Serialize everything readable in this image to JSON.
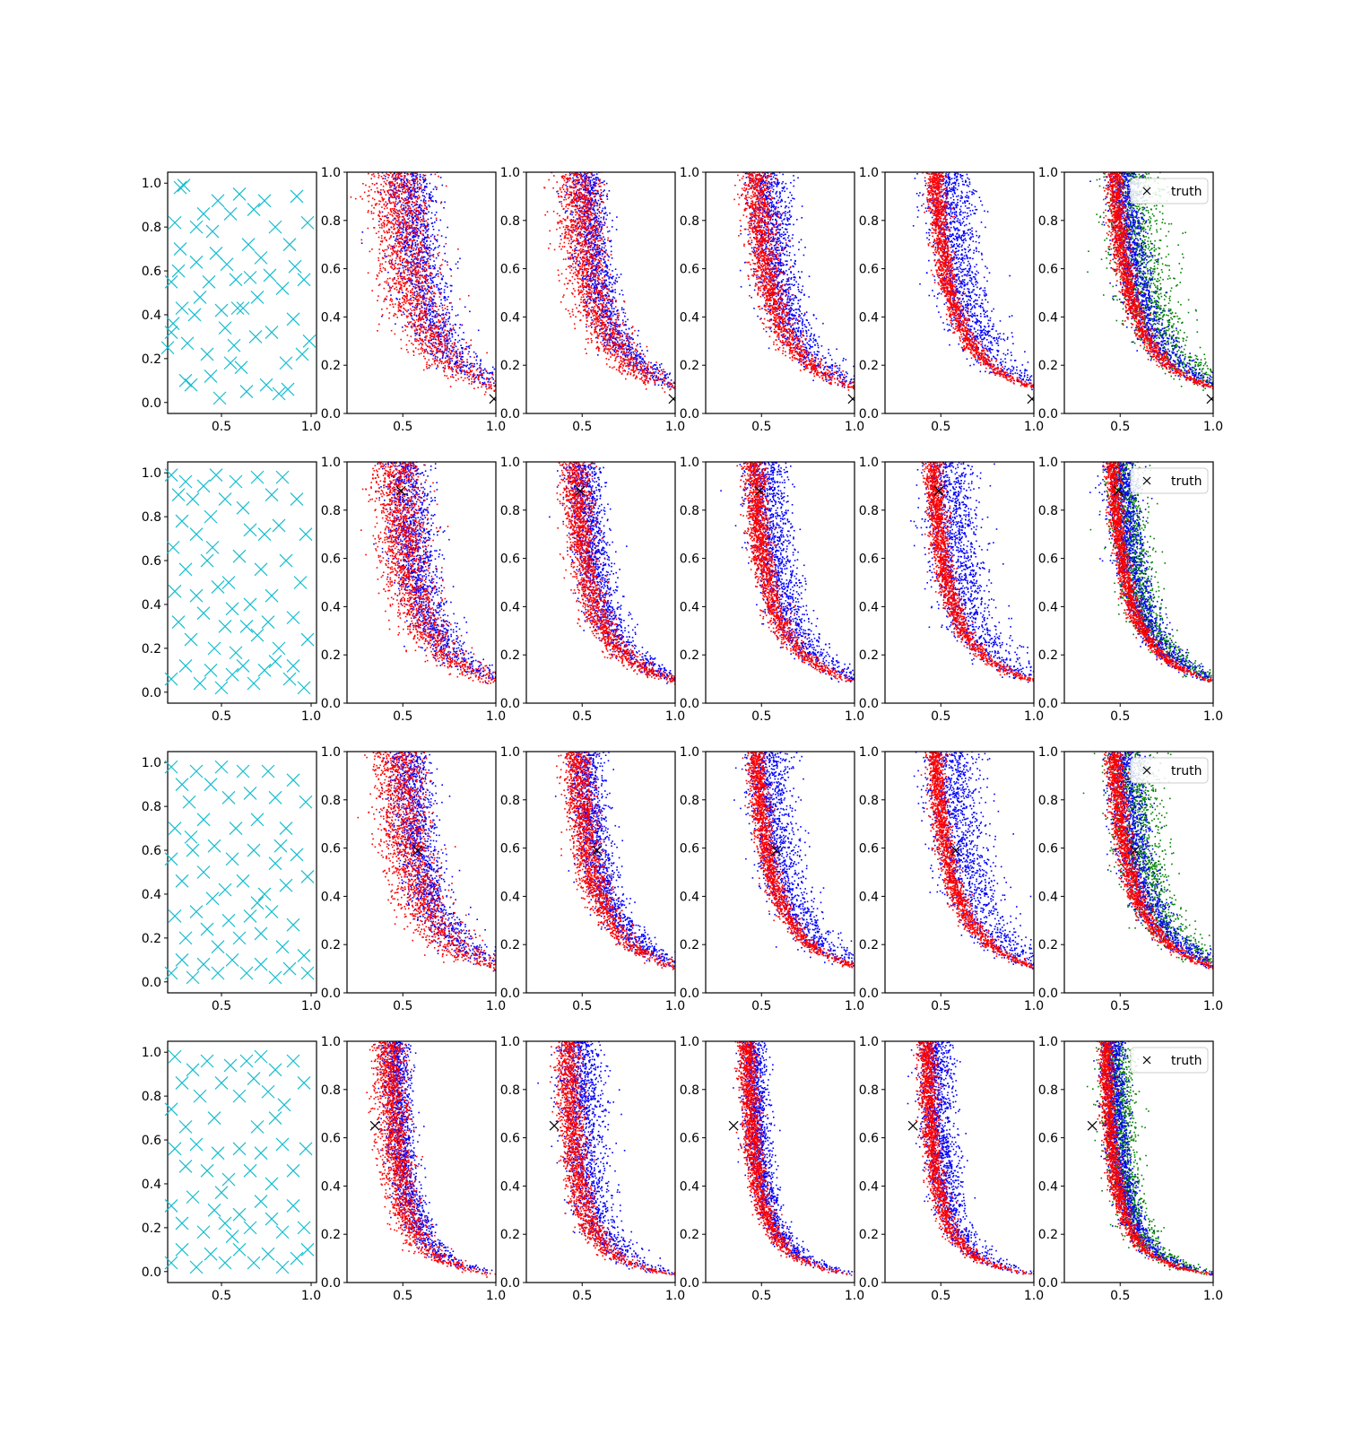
{
  "figure": {
    "rows": 4,
    "cols": 6,
    "legend_label": "truth"
  },
  "chart_data": {
    "type": "scatter",
    "grid": false,
    "legend_placement": "top-right",
    "x_ticks": [
      "0.5",
      "1.0"
    ],
    "y_ticks_design": [
      "0.0",
      "0.2",
      "0.4",
      "0.6",
      "0.8",
      "1.0"
    ],
    "y_ticks_curve": [
      "0.0",
      "0.2",
      "0.4",
      "0.6",
      "0.8",
      "1.0"
    ],
    "xlim_design": [
      0.2,
      1.03
    ],
    "ylim_design": [
      -0.05,
      1.05
    ],
    "xlim_curve": [
      0.2,
      1.0
    ],
    "ylim_curve": [
      0.0,
      1.0
    ],
    "colors": {
      "design": "#17becf",
      "red": "#ff0000",
      "blue": "#0000ff",
      "green": "#008000",
      "truth": "#000000"
    },
    "rows": [
      {
        "truth": {
          "x": 0.99,
          "y": 0.06
        },
        "curve_c": 0.092,
        "design_points": [
          [
            0.29,
            0.99
          ],
          [
            0.28,
            0.43
          ],
          [
            0.22,
            0.32
          ],
          [
            0.27,
            0.98
          ],
          [
            0.22,
            0.55
          ],
          [
            0.2,
            0.25
          ],
          [
            0.23,
            0.36
          ],
          [
            0.31,
            0.27
          ],
          [
            0.27,
            0.7
          ],
          [
            0.38,
            0.48
          ],
          [
            0.3,
            0.1
          ],
          [
            0.42,
            0.22
          ],
          [
            0.36,
            0.64
          ],
          [
            0.4,
            0.86
          ],
          [
            0.48,
            0.92
          ],
          [
            0.43,
            0.55
          ],
          [
            0.36,
            0.8
          ],
          [
            0.5,
            0.42
          ],
          [
            0.44,
            0.12
          ],
          [
            0.55,
            0.18
          ],
          [
            0.47,
            0.68
          ],
          [
            0.55,
            0.86
          ],
          [
            0.6,
            0.95
          ],
          [
            0.58,
            0.56
          ],
          [
            0.62,
            0.43
          ],
          [
            0.52,
            0.34
          ],
          [
            0.64,
            0.05
          ],
          [
            0.65,
            0.72
          ],
          [
            0.7,
            0.48
          ],
          [
            0.72,
            0.66
          ],
          [
            0.68,
            0.88
          ],
          [
            0.75,
            0.08
          ],
          [
            0.78,
            0.32
          ],
          [
            0.8,
            0.8
          ],
          [
            0.84,
            0.52
          ],
          [
            0.86,
            0.18
          ],
          [
            0.88,
            0.72
          ],
          [
            0.92,
            0.94
          ],
          [
            0.9,
            0.38
          ],
          [
            0.95,
            0.22
          ],
          [
            0.98,
            0.82
          ],
          [
            0.96,
            0.56
          ],
          [
            0.33,
            0.08
          ],
          [
            0.61,
            0.16
          ],
          [
            0.74,
            0.92
          ],
          [
            0.82,
            0.04
          ],
          [
            0.57,
            0.26
          ],
          [
            0.45,
            0.78
          ],
          [
            0.26,
            0.6
          ],
          [
            0.69,
            0.3
          ],
          [
            0.91,
            0.62
          ],
          [
            0.35,
            0.4
          ],
          [
            0.53,
            0.63
          ],
          [
            0.77,
            0.58
          ],
          [
            0.99,
            0.28
          ],
          [
            0.24,
            0.82
          ],
          [
            0.66,
            0.57
          ],
          [
            0.59,
            0.43
          ],
          [
            0.49,
            0.02
          ],
          [
            0.87,
            0.06
          ]
        ],
        "panels": [
          {
            "spread_red": 0.16,
            "spread_blue": 0.14
          },
          {
            "spread_red": 0.12,
            "spread_blue": 0.1
          },
          {
            "spread_red": 0.08,
            "spread_blue": 0.12
          },
          {
            "spread_red": 0.05,
            "spread_blue": 0.14
          },
          {
            "spread_red": 0.05,
            "spread_blue": 0.1,
            "spread_green": 0.16
          }
        ]
      },
      {
        "truth": {
          "x": 0.49,
          "y": 0.88
        },
        "curve_c": 0.082,
        "design_points": [
          [
            0.22,
            0.99
          ],
          [
            0.3,
            0.96
          ],
          [
            0.26,
            0.9
          ],
          [
            0.34,
            0.88
          ],
          [
            0.28,
            0.78
          ],
          [
            0.23,
            0.66
          ],
          [
            0.36,
            0.72
          ],
          [
            0.4,
            0.94
          ],
          [
            0.47,
            0.99
          ],
          [
            0.44,
            0.8
          ],
          [
            0.52,
            0.88
          ],
          [
            0.58,
            0.96
          ],
          [
            0.62,
            0.84
          ],
          [
            0.7,
            0.98
          ],
          [
            0.66,
            0.74
          ],
          [
            0.78,
            0.9
          ],
          [
            0.84,
            0.98
          ],
          [
            0.82,
            0.76
          ],
          [
            0.92,
            0.88
          ],
          [
            0.97,
            0.72
          ],
          [
            0.24,
            0.46
          ],
          [
            0.3,
            0.56
          ],
          [
            0.36,
            0.44
          ],
          [
            0.42,
            0.6
          ],
          [
            0.48,
            0.48
          ],
          [
            0.54,
            0.5
          ],
          [
            0.6,
            0.62
          ],
          [
            0.66,
            0.4
          ],
          [
            0.72,
            0.56
          ],
          [
            0.78,
            0.44
          ],
          [
            0.86,
            0.6
          ],
          [
            0.94,
            0.5
          ],
          [
            0.26,
            0.32
          ],
          [
            0.33,
            0.24
          ],
          [
            0.4,
            0.36
          ],
          [
            0.46,
            0.2
          ],
          [
            0.52,
            0.3
          ],
          [
            0.58,
            0.18
          ],
          [
            0.64,
            0.3
          ],
          [
            0.7,
            0.26
          ],
          [
            0.76,
            0.32
          ],
          [
            0.82,
            0.2
          ],
          [
            0.9,
            0.34
          ],
          [
            0.98,
            0.24
          ],
          [
            0.22,
            0.06
          ],
          [
            0.3,
            0.12
          ],
          [
            0.38,
            0.04
          ],
          [
            0.44,
            0.1
          ],
          [
            0.5,
            0.02
          ],
          [
            0.56,
            0.08
          ],
          [
            0.62,
            0.12
          ],
          [
            0.68,
            0.04
          ],
          [
            0.74,
            0.1
          ],
          [
            0.8,
            0.14
          ],
          [
            0.88,
            0.06
          ],
          [
            0.96,
            0.02
          ],
          [
            0.45,
            0.66
          ],
          [
            0.74,
            0.72
          ],
          [
            0.56,
            0.38
          ],
          [
            0.9,
            0.12
          ]
        ],
        "panels": [
          {
            "spread_red": 0.14,
            "spread_blue": 0.12
          },
          {
            "spread_red": 0.08,
            "spread_blue": 0.1
          },
          {
            "spread_red": 0.06,
            "spread_blue": 0.12
          },
          {
            "spread_red": 0.05,
            "spread_blue": 0.15
          },
          {
            "spread_red": 0.04,
            "spread_blue": 0.09,
            "spread_green": 0.1
          }
        ]
      },
      {
        "truth": {
          "x": 0.58,
          "y": 0.59
        },
        "curve_c": 0.092,
        "design_points": [
          [
            0.22,
            0.98
          ],
          [
            0.28,
            0.9
          ],
          [
            0.24,
            0.7
          ],
          [
            0.32,
            0.82
          ],
          [
            0.36,
            0.96
          ],
          [
            0.4,
            0.74
          ],
          [
            0.44,
            0.9
          ],
          [
            0.5,
            0.98
          ],
          [
            0.54,
            0.84
          ],
          [
            0.58,
            0.7
          ],
          [
            0.62,
            0.96
          ],
          [
            0.66,
            0.86
          ],
          [
            0.7,
            0.74
          ],
          [
            0.76,
            0.96
          ],
          [
            0.8,
            0.84
          ],
          [
            0.86,
            0.7
          ],
          [
            0.9,
            0.92
          ],
          [
            0.97,
            0.82
          ],
          [
            0.22,
            0.56
          ],
          [
            0.28,
            0.46
          ],
          [
            0.34,
            0.6
          ],
          [
            0.4,
            0.5
          ],
          [
            0.46,
            0.62
          ],
          [
            0.52,
            0.42
          ],
          [
            0.56,
            0.56
          ],
          [
            0.62,
            0.46
          ],
          [
            0.68,
            0.6
          ],
          [
            0.74,
            0.4
          ],
          [
            0.8,
            0.54
          ],
          [
            0.86,
            0.44
          ],
          [
            0.92,
            0.58
          ],
          [
            0.98,
            0.48
          ],
          [
            0.24,
            0.3
          ],
          [
            0.3,
            0.2
          ],
          [
            0.36,
            0.32
          ],
          [
            0.42,
            0.24
          ],
          [
            0.48,
            0.16
          ],
          [
            0.54,
            0.28
          ],
          [
            0.6,
            0.2
          ],
          [
            0.66,
            0.3
          ],
          [
            0.72,
            0.22
          ],
          [
            0.78,
            0.32
          ],
          [
            0.84,
            0.16
          ],
          [
            0.9,
            0.26
          ],
          [
            0.96,
            0.12
          ],
          [
            0.22,
            0.04
          ],
          [
            0.28,
            0.1
          ],
          [
            0.34,
            0.02
          ],
          [
            0.4,
            0.08
          ],
          [
            0.48,
            0.04
          ],
          [
            0.56,
            0.1
          ],
          [
            0.64,
            0.04
          ],
          [
            0.72,
            0.08
          ],
          [
            0.8,
            0.02
          ],
          [
            0.88,
            0.06
          ],
          [
            0.98,
            0.04
          ],
          [
            0.45,
            0.38
          ],
          [
            0.7,
            0.36
          ],
          [
            0.33,
            0.66
          ],
          [
            0.83,
            0.62
          ]
        ],
        "panels": [
          {
            "spread_red": 0.15,
            "spread_blue": 0.12
          },
          {
            "spread_red": 0.08,
            "spread_blue": 0.1
          },
          {
            "spread_red": 0.05,
            "spread_blue": 0.13
          },
          {
            "spread_red": 0.05,
            "spread_blue": 0.16
          },
          {
            "spread_red": 0.05,
            "spread_blue": 0.1,
            "spread_green": 0.14
          }
        ]
      },
      {
        "truth": {
          "x": 0.35,
          "y": 0.65
        },
        "curve_c": 0.045,
        "design_points": [
          [
            0.24,
            0.98
          ],
          [
            0.28,
            0.86
          ],
          [
            0.22,
            0.74
          ],
          [
            0.3,
            0.66
          ],
          [
            0.34,
            0.92
          ],
          [
            0.38,
            0.8
          ],
          [
            0.42,
            0.96
          ],
          [
            0.46,
            0.7
          ],
          [
            0.5,
            0.86
          ],
          [
            0.55,
            0.94
          ],
          [
            0.6,
            0.8
          ],
          [
            0.64,
            0.96
          ],
          [
            0.68,
            0.88
          ],
          [
            0.72,
            0.98
          ],
          [
            0.76,
            0.82
          ],
          [
            0.8,
            0.92
          ],
          [
            0.85,
            0.76
          ],
          [
            0.9,
            0.96
          ],
          [
            0.96,
            0.86
          ],
          [
            0.24,
            0.56
          ],
          [
            0.3,
            0.48
          ],
          [
            0.36,
            0.58
          ],
          [
            0.42,
            0.46
          ],
          [
            0.48,
            0.54
          ],
          [
            0.54,
            0.42
          ],
          [
            0.6,
            0.56
          ],
          [
            0.66,
            0.46
          ],
          [
            0.72,
            0.54
          ],
          [
            0.78,
            0.4
          ],
          [
            0.84,
            0.58
          ],
          [
            0.9,
            0.46
          ],
          [
            0.97,
            0.56
          ],
          [
            0.22,
            0.3
          ],
          [
            0.28,
            0.22
          ],
          [
            0.34,
            0.34
          ],
          [
            0.4,
            0.18
          ],
          [
            0.46,
            0.28
          ],
          [
            0.52,
            0.22
          ],
          [
            0.56,
            0.16
          ],
          [
            0.6,
            0.26
          ],
          [
            0.66,
            0.2
          ],
          [
            0.72,
            0.32
          ],
          [
            0.78,
            0.24
          ],
          [
            0.84,
            0.18
          ],
          [
            0.9,
            0.3
          ],
          [
            0.96,
            0.2
          ],
          [
            0.22,
            0.04
          ],
          [
            0.28,
            0.1
          ],
          [
            0.36,
            0.02
          ],
          [
            0.44,
            0.08
          ],
          [
            0.52,
            0.04
          ],
          [
            0.6,
            0.1
          ],
          [
            0.68,
            0.04
          ],
          [
            0.76,
            0.08
          ],
          [
            0.84,
            0.02
          ],
          [
            0.92,
            0.06
          ],
          [
            0.98,
            0.1
          ],
          [
            0.7,
            0.66
          ],
          [
            0.5,
            0.36
          ],
          [
            0.8,
            0.7
          ]
        ],
        "panels": [
          {
            "spread_red": 0.09,
            "spread_blue": 0.08
          },
          {
            "spread_red": 0.07,
            "spread_blue": 0.12
          },
          {
            "spread_red": 0.05,
            "spread_blue": 0.07
          },
          {
            "spread_red": 0.05,
            "spread_blue": 0.09
          },
          {
            "spread_red": 0.04,
            "spread_blue": 0.07,
            "spread_green": 0.09
          }
        ]
      }
    ]
  }
}
